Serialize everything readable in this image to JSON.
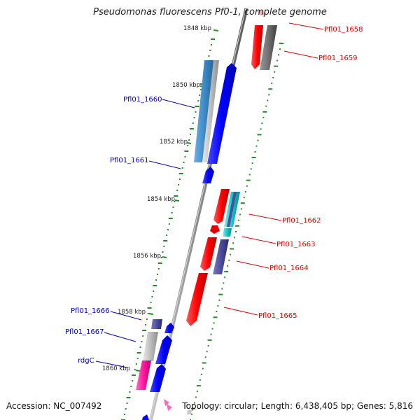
{
  "title": "Pseudomonas fluorescens Pf0-1, complete genome",
  "accession_label": "Accession:",
  "accession": "NC_007492",
  "topology_text": "Topology: circular; Length: 6,438,405 bp; Genes: 5,816",
  "kbp_ticks": [
    "1848 kbp",
    "1850 kbp",
    "1852 kbp",
    "1854 kbp",
    "1856 kbp",
    "1858 kbp",
    "1860 kbp"
  ],
  "right_genes": [
    "Pfl01_1658",
    "Pfl01_1659",
    "Pfl01_1662",
    "Pfl01_1663",
    "Pfl01_1664",
    "Pfl01_1665"
  ],
  "left_genes": [
    "Pfl01_1660",
    "Pfl01_1661",
    "Pfl01_1666",
    "Pfl01_1667",
    "rdgC"
  ],
  "colors": {
    "right_label": "#e00000",
    "left_label": "#0000c0",
    "backbone": "#8a8a8a",
    "tick": "#2a8a2a"
  }
}
